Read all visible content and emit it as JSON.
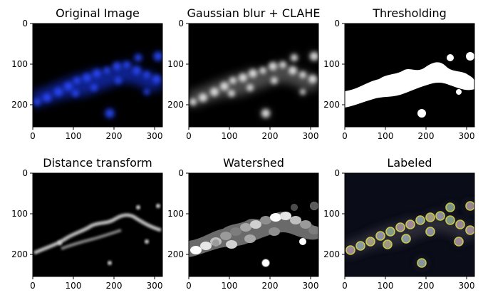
{
  "figure": {
    "panels": [
      {
        "title": "Original Image",
        "x_ticks": [
          "0",
          "100",
          "200",
          "300"
        ],
        "y_ticks": [
          "0",
          "100",
          "200"
        ]
      },
      {
        "title": "Gaussian blur + CLAHE",
        "x_ticks": [
          "0",
          "100",
          "200",
          "300"
        ],
        "y_ticks": [
          "0",
          "100",
          "200"
        ]
      },
      {
        "title": "Thresholding",
        "x_ticks": [
          "0",
          "100",
          "200",
          "300"
        ],
        "y_ticks": [
          "0",
          "100",
          "200"
        ]
      },
      {
        "title": "Distance transform",
        "x_ticks": [
          "0",
          "100",
          "200",
          "300"
        ],
        "y_ticks": [
          "0",
          "100",
          "200"
        ]
      },
      {
        "title": "Watershed",
        "x_ticks": [
          "0",
          "100",
          "200",
          "300"
        ],
        "y_ticks": [
          "0",
          "100",
          "200"
        ]
      },
      {
        "title": "Labeled",
        "x_ticks": [
          "0",
          "100",
          "200",
          "300"
        ],
        "y_ticks": [
          "0",
          "100",
          "200"
        ]
      }
    ]
  },
  "colors": {
    "original_fluorescence": "#1f3cff",
    "label_outline": "#ffff55",
    "background": "#000000"
  }
}
